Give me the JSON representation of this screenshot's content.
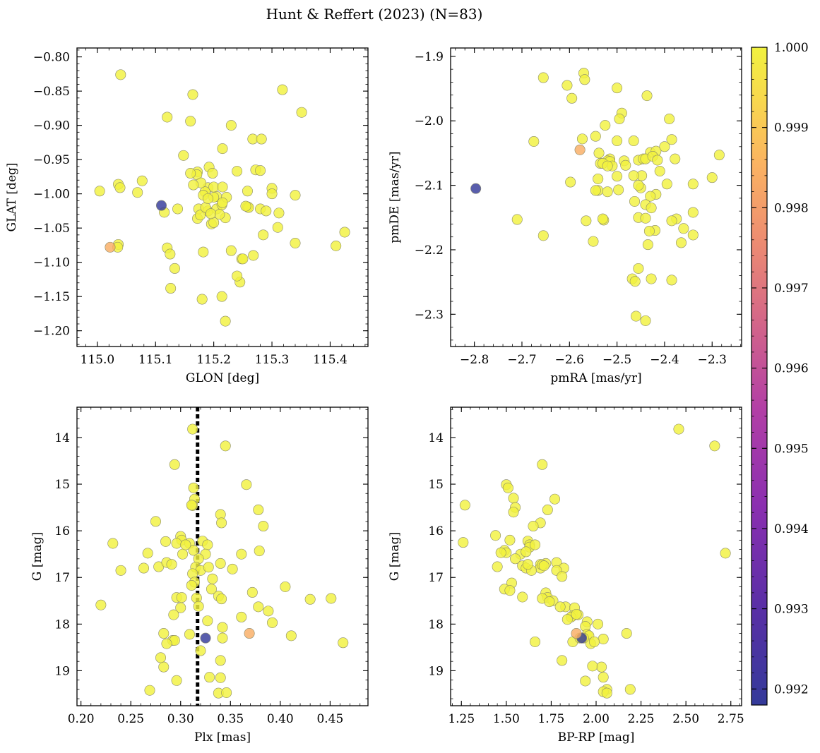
{
  "title": "Hunt & Reffert (2023) (N=83)",
  "colorbar": {
    "range": [
      0.9918,
      1.0
    ],
    "ticks": [
      "0.992",
      "0.993",
      "0.994",
      "0.995",
      "0.996",
      "0.997",
      "0.998",
      "0.999",
      "1.000"
    ],
    "tick_values": [
      0.992,
      0.993,
      0.994,
      0.995,
      0.996,
      0.997,
      0.998,
      0.999,
      1.0
    ],
    "colormap": "plasma"
  },
  "chart_data": [
    {
      "type": "scatter",
      "xlabel": "GLON [deg]",
      "ylabel": "GLAT [deg]",
      "xlim": [
        114.965,
        115.465
      ],
      "ylim": [
        -1.223,
        -0.787
      ],
      "xticks": [
        115.0,
        115.1,
        115.2,
        115.3,
        115.4
      ],
      "xtick_labels": [
        "115.0",
        "115.1",
        "115.2",
        "115.3",
        "115.4"
      ],
      "yticks": [
        -0.8,
        -0.85,
        -0.9,
        -0.95,
        -1.0,
        -1.05,
        -1.1,
        -1.15,
        -1.2
      ],
      "ytick_labels": [
        "−0.80",
        "−0.85",
        "−0.90",
        "−0.95",
        "−1.00",
        "−1.05",
        "−1.10",
        "−1.15",
        "−1.20"
      ],
      "x": [
        115.04,
        115.164,
        115.318,
        115.351,
        115.12,
        115.16,
        115.23,
        115.267,
        115.282,
        115.215,
        115.148,
        115.192,
        115.172,
        115.24,
        115.272,
        115.28,
        115.004,
        115.036,
        115.039,
        115.077,
        115.069,
        115.171,
        115.19,
        115.2,
        115.185,
        115.215,
        115.258,
        115.3,
        115.34,
        115.182,
        115.205,
        115.115,
        115.138,
        115.172,
        115.174,
        115.19,
        115.205,
        115.214,
        115.22,
        115.28,
        115.29,
        115.312,
        115.258,
        115.196,
        115.2,
        115.178,
        115.16,
        115.222,
        115.215,
        115.31,
        115.425,
        115.036,
        115.035,
        115.34,
        115.41,
        115.12,
        115.182,
        115.23,
        115.268,
        115.248,
        115.133,
        115.126,
        115.245,
        115.18,
        115.214,
        115.22,
        115.177,
        115.186,
        115.19,
        115.165,
        115.26,
        115.2,
        115.21,
        115.195,
        115.25,
        115.125,
        115.3,
        115.255,
        115.24,
        115.285,
        115.198,
        115.11,
        115.022
      ],
      "y": [
        -0.826,
        -0.855,
        -0.848,
        -0.881,
        -0.888,
        -0.894,
        -0.9,
        -0.92,
        -0.92,
        -0.934,
        -0.944,
        -0.961,
        -0.968,
        -0.967,
        -0.965,
        -0.966,
        -0.996,
        -0.986,
        -0.991,
        -0.981,
        -0.998,
        -0.972,
        -0.991,
        -0.99,
        -0.997,
        -0.99,
        -0.996,
        -0.992,
        -1.002,
        -1.002,
        -1.004,
        -1.027,
        -1.022,
        -1.036,
        -1.022,
        -1.025,
        -1.022,
        -1.016,
        -1.035,
        -1.022,
        -1.025,
        -1.028,
        -1.019,
        -1.044,
        -1.005,
        -0.984,
        -0.97,
        -1.005,
        -1.013,
        -1.049,
        -1.056,
        -1.074,
        -1.078,
        -1.072,
        -1.076,
        -1.079,
        -1.085,
        -1.083,
        -1.09,
        -1.095,
        -1.109,
        -1.138,
        -1.129,
        -1.154,
        -1.15,
        -1.186,
        -1.031,
        -1.02,
        -1.007,
        -0.987,
        -1.02,
        -1.042,
        -1.03,
        -1.029,
        -1.095,
        -1.088,
        -1.0,
        -1.018,
        -1.12,
        -1.06,
        -0.97,
        -1.017,
        -1.078
      ],
      "c": [
        1,
        1,
        1,
        1,
        1,
        1,
        1,
        1,
        1,
        1,
        1,
        1,
        1,
        1,
        1,
        1,
        1,
        1,
        1,
        1,
        1,
        1,
        1,
        1,
        1,
        1,
        1,
        1,
        1,
        1,
        1,
        1,
        1,
        1,
        1,
        1,
        1,
        1,
        1,
        1,
        1,
        1,
        1,
        1,
        1,
        1,
        1,
        1,
        1,
        1,
        1,
        1,
        1,
        1,
        1,
        1,
        1,
        1,
        1,
        1,
        1,
        1,
        1,
        1,
        1,
        1,
        1,
        1,
        1,
        1,
        1,
        1,
        1,
        1,
        1,
        1,
        1,
        1,
        1,
        1,
        1,
        0.9918,
        0.9984
      ]
    },
    {
      "type": "scatter",
      "xlabel": "pmRA [mas/yr]",
      "ylabel": "pmDE [mas/yr]",
      "xlim": [
        -2.85,
        -2.238
      ],
      "ylim": [
        -2.35,
        -1.887
      ],
      "xticks": [
        -2.8,
        -2.7,
        -2.6,
        -2.5,
        -2.4,
        -2.3
      ],
      "xtick_labels": [
        "−2.8",
        "−2.7",
        "−2.6",
        "−2.5",
        "−2.4",
        "−2.3"
      ],
      "yticks": [
        -1.9,
        -2.0,
        -2.1,
        -2.2,
        -2.3
      ],
      "ytick_labels": [
        "−1.9",
        "−2.0",
        "−2.1",
        "−2.2",
        "−2.3"
      ],
      "x": [
        -2.655,
        -2.57,
        -2.568,
        -2.605,
        -2.595,
        -2.5,
        -2.437,
        -2.49,
        -2.495,
        -2.525,
        -2.545,
        -2.675,
        -2.573,
        -2.465,
        -2.385,
        -2.39,
        -2.43,
        -2.538,
        -2.515,
        -2.5,
        -2.52,
        -2.535,
        -2.485,
        -2.455,
        -2.445,
        -2.418,
        -2.4,
        -2.515,
        -2.53,
        -2.51,
        -2.482,
        -2.598,
        -2.44,
        -2.425,
        -2.415,
        -2.378,
        -2.395,
        -2.34,
        -2.3,
        -2.285,
        -2.54,
        -2.52,
        -2.497,
        -2.448,
        -2.41,
        -2.45,
        -2.455,
        -2.418,
        -2.43,
        -2.44,
        -2.455,
        -2.463,
        -2.44,
        -2.375,
        -2.36,
        -2.34,
        -2.365,
        -2.42,
        -2.432,
        -2.34,
        -2.435,
        -2.455,
        -2.428,
        -2.385,
        -2.565,
        -2.55,
        -2.528,
        -2.53,
        -2.545,
        -2.71,
        -2.655,
        -2.468,
        -2.462,
        -2.46,
        -2.465,
        -2.428,
        -2.385,
        -2.44,
        -2.5,
        -2.54,
        -2.52,
        -2.797,
        -2.578
      ],
      "y": [
        -1.933,
        -1.926,
        -1.936,
        -1.945,
        -1.965,
        -1.949,
        -1.961,
        -1.988,
        -1.997,
        -2.007,
        -2.024,
        -2.032,
        -2.028,
        -2.031,
        -2.029,
        -1.997,
        -2.049,
        -2.05,
        -2.059,
        -2.031,
        -2.062,
        -2.066,
        -2.062,
        -2.061,
        -2.059,
        -2.047,
        -2.04,
        -2.063,
        -2.066,
        -2.07,
        -2.069,
        -2.095,
        -2.059,
        -2.055,
        -2.061,
        -2.059,
        -2.098,
        -2.098,
        -2.088,
        -2.053,
        -2.108,
        -2.11,
        -2.107,
        -2.085,
        -2.078,
        -2.104,
        -2.1,
        -2.114,
        -2.117,
        -2.13,
        -2.15,
        -2.125,
        -2.151,
        -2.152,
        -2.167,
        -2.142,
        -2.189,
        -2.17,
        -2.171,
        -2.177,
        -2.192,
        -2.229,
        -2.245,
        -2.247,
        -2.155,
        -2.187,
        -2.154,
        -2.152,
        -2.108,
        -2.153,
        -2.178,
        -2.245,
        -2.249,
        -2.303,
        -2.085,
        -2.135,
        -2.155,
        -2.31,
        -2.086,
        -2.09,
        -2.07,
        -2.105,
        -2.045
      ],
      "c": [
        1,
        1,
        1,
        1,
        1,
        1,
        1,
        1,
        1,
        1,
        1,
        1,
        1,
        1,
        1,
        1,
        1,
        1,
        1,
        1,
        1,
        1,
        1,
        1,
        1,
        1,
        1,
        1,
        1,
        1,
        1,
        1,
        1,
        1,
        1,
        1,
        1,
        1,
        1,
        1,
        1,
        1,
        1,
        1,
        1,
        1,
        1,
        1,
        1,
        1,
        1,
        1,
        1,
        1,
        1,
        1,
        1,
        1,
        1,
        1,
        1,
        1,
        1,
        1,
        1,
        1,
        1,
        1,
        1,
        1,
        1,
        1,
        1,
        1,
        1,
        1,
        1,
        1,
        1,
        1,
        1,
        0.9918,
        0.9984
      ]
    },
    {
      "type": "scatter",
      "xlabel": "Plx [mas]",
      "ylabel": "G [mag]",
      "xlim": [
        0.196,
        0.488
      ],
      "ylim": [
        19.75,
        13.35
      ],
      "xticks": [
        0.2,
        0.25,
        0.3,
        0.35,
        0.4,
        0.45
      ],
      "xtick_labels": [
        "0.20",
        "0.25",
        "0.30",
        "0.35",
        "0.40",
        "0.45"
      ],
      "yticks": [
        14,
        15,
        16,
        17,
        18,
        19
      ],
      "ytick_labels": [
        "14",
        "15",
        "16",
        "17",
        "18",
        "19"
      ],
      "vline": 0.317,
      "x": [
        0.312,
        0.345,
        0.294,
        0.313,
        0.366,
        0.314,
        0.312,
        0.311,
        0.378,
        0.34,
        0.275,
        0.341,
        0.383,
        0.3,
        0.301,
        0.232,
        0.296,
        0.309,
        0.322,
        0.327,
        0.267,
        0.302,
        0.325,
        0.313,
        0.305,
        0.361,
        0.285,
        0.318,
        0.34,
        0.263,
        0.278,
        0.286,
        0.291,
        0.315,
        0.32,
        0.328,
        0.24,
        0.352,
        0.379,
        0.312,
        0.314,
        0.332,
        0.311,
        0.331,
        0.338,
        0.372,
        0.405,
        0.316,
        0.341,
        0.296,
        0.301,
        0.22,
        0.3,
        0.378,
        0.388,
        0.361,
        0.451,
        0.43,
        0.318,
        0.293,
        0.327,
        0.392,
        0.283,
        0.342,
        0.292,
        0.309,
        0.411,
        0.463,
        0.294,
        0.286,
        0.342,
        0.32,
        0.283,
        0.34,
        0.296,
        0.329,
        0.34,
        0.338,
        0.269,
        0.346,
        0.28,
        0.325,
        0.369
      ],
      "y": [
        13.82,
        14.18,
        14.58,
        15.08,
        15.01,
        15.32,
        15.46,
        15.45,
        15.55,
        15.65,
        15.8,
        15.83,
        15.9,
        16.12,
        16.2,
        16.27,
        16.27,
        16.27,
        16.22,
        16.3,
        16.48,
        16.5,
        16.5,
        16.42,
        16.3,
        16.5,
        16.23,
        16.6,
        16.7,
        16.8,
        16.77,
        16.68,
        16.72,
        16.78,
        16.85,
        16.78,
        16.85,
        16.82,
        16.43,
        16.92,
        17.1,
        17.03,
        17.17,
        17.25,
        17.4,
        17.32,
        17.2,
        17.44,
        17.46,
        17.43,
        17.43,
        17.59,
        17.65,
        17.63,
        17.72,
        17.85,
        17.45,
        17.47,
        17.62,
        17.8,
        17.93,
        17.97,
        18.2,
        18.07,
        18.35,
        18.22,
        18.25,
        18.4,
        18.35,
        18.42,
        18.3,
        18.57,
        18.92,
        18.78,
        19.21,
        19.14,
        19.15,
        19.48,
        19.42,
        19.47,
        18.72,
        18.3,
        18.2
      ],
      "c": [
        1,
        1,
        1,
        1,
        1,
        1,
        1,
        1,
        1,
        1,
        1,
        1,
        1,
        1,
        1,
        1,
        1,
        1,
        1,
        1,
        1,
        1,
        1,
        1,
        1,
        1,
        1,
        1,
        1,
        1,
        1,
        1,
        1,
        1,
        1,
        1,
        1,
        1,
        1,
        1,
        1,
        1,
        1,
        1,
        1,
        1,
        1,
        1,
        1,
        1,
        1,
        1,
        1,
        1,
        1,
        1,
        1,
        1,
        1,
        1,
        1,
        1,
        1,
        1,
        1,
        1,
        1,
        1,
        1,
        1,
        1,
        1,
        1,
        1,
        1,
        1,
        1,
        1,
        1,
        1,
        1,
        0.9918,
        0.9984
      ]
    },
    {
      "type": "scatter",
      "xlabel": "BP-RP [mag]",
      "ylabel": "G [mag]",
      "xlim": [
        1.19,
        2.81
      ],
      "ylim": [
        19.75,
        13.35
      ],
      "xticks": [
        1.25,
        1.5,
        1.75,
        2.0,
        2.25,
        2.5,
        2.75
      ],
      "xtick_labels": [
        "1.25",
        "1.50",
        "1.75",
        "2.00",
        "2.25",
        "2.50",
        "2.75"
      ],
      "yticks": [
        14,
        15,
        16,
        17,
        18,
        19
      ],
      "ytick_labels": [
        "14",
        "15",
        "16",
        "17",
        "18",
        "19"
      ],
      "x": [
        2.46,
        2.66,
        1.7,
        1.5,
        1.51,
        1.54,
        1.55,
        1.54,
        1.73,
        1.77,
        1.27,
        1.69,
        1.65,
        1.44,
        1.26,
        1.52,
        1.62,
        1.63,
        1.63,
        1.66,
        1.49,
        1.58,
        1.61,
        1.5,
        1.47,
        1.55,
        1.78,
        1.59,
        1.61,
        1.69,
        1.72,
        1.45,
        1.82,
        1.78,
        1.69,
        1.7,
        1.71,
        1.64,
        1.62,
        1.81,
        1.53,
        1.49,
        1.52,
        1.72,
        1.73,
        1.59,
        1.7,
        1.76,
        1.74,
        1.83,
        1.88,
        1.8,
        1.87,
        1.9,
        1.86,
        1.84,
        1.89,
        1.95,
        1.94,
        2.72,
        1.95,
        2.01,
        1.96,
        1.92,
        1.97,
        2.17,
        1.87,
        1.93,
        1.91,
        2.04,
        1.99,
        2.03,
        1.98,
        1.66,
        1.81,
        1.94,
        2.04,
        2.06,
        2.04,
        2.19,
        2.06,
        1.92,
        1.89
      ],
      "y": [
        13.82,
        14.18,
        14.58,
        15.01,
        15.08,
        15.3,
        15.5,
        15.6,
        15.55,
        15.32,
        15.45,
        15.83,
        15.9,
        16.1,
        16.25,
        16.2,
        16.22,
        16.3,
        16.35,
        16.3,
        16.42,
        16.5,
        16.45,
        16.47,
        16.47,
        16.6,
        16.68,
        16.75,
        16.8,
        16.72,
        16.7,
        16.77,
        16.8,
        16.85,
        16.8,
        16.73,
        16.75,
        16.85,
        16.72,
        16.98,
        17.12,
        17.25,
        17.28,
        17.33,
        17.43,
        17.42,
        17.45,
        17.5,
        17.52,
        17.63,
        17.65,
        17.63,
        17.82,
        17.8,
        17.85,
        17.9,
        17.79,
        17.95,
        18.05,
        16.48,
        18.22,
        18.0,
        18.25,
        18.3,
        18.42,
        18.2,
        18.38,
        18.3,
        18.3,
        18.32,
        18.38,
        18.92,
        18.9,
        18.38,
        18.78,
        19.22,
        19.14,
        19.4,
        19.45,
        19.4,
        19.48,
        18.3,
        18.2
      ],
      "c": [
        1,
        1,
        1,
        1,
        1,
        1,
        1,
        1,
        1,
        1,
        1,
        1,
        1,
        1,
        1,
        1,
        1,
        1,
        1,
        1,
        1,
        1,
        1,
        1,
        1,
        1,
        1,
        1,
        1,
        1,
        1,
        1,
        1,
        1,
        1,
        1,
        1,
        1,
        1,
        1,
        1,
        1,
        1,
        1,
        1,
        1,
        1,
        1,
        1,
        1,
        1,
        1,
        1,
        1,
        1,
        1,
        1,
        1,
        1,
        1,
        1,
        1,
        1,
        1,
        1,
        1,
        1,
        1,
        1,
        1,
        1,
        1,
        1,
        1,
        1,
        1,
        1,
        1,
        1,
        1,
        1,
        0.9918,
        0.9984
      ]
    }
  ]
}
